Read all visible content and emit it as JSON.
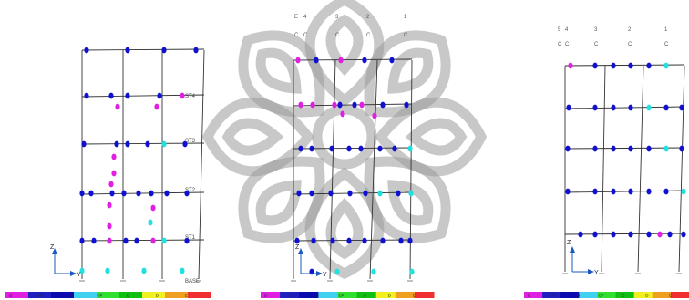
{
  "colors": {
    "blue": "#1010d0",
    "magenta": "#e020e0",
    "cyan": "#20e0e0",
    "frame": "#333333"
  },
  "legend_colors": [
    "#e020e0",
    "#2020c0",
    "#0a0ab0",
    "#40d0f0",
    "#30e030",
    "#10c010",
    "#f0f020",
    "#f0a020",
    "#f03030"
  ],
  "panel1": {
    "story_labels": [
      "ST4",
      "ST3",
      "ST2",
      "ST1"
    ],
    "base_label": "BASE",
    "axis_z": "Z",
    "axis_y": "Y",
    "legend_labels": [
      "B",
      "IO",
      "LS",
      "CP",
      "C",
      "D",
      "E"
    ]
  },
  "panel2": {
    "grid_top": [
      "E",
      "4",
      "3",
      "2",
      "1"
    ],
    "grid_bottom": [
      "C",
      "C",
      "C",
      "C",
      "C"
    ],
    "axis_z": "Z",
    "axis_y": "Y",
    "legend_labels": [
      "B",
      "IO",
      "LS",
      "CP",
      "C",
      "D",
      "E"
    ]
  },
  "panel3": {
    "grid_top": [
      "5",
      "4",
      "3",
      "2",
      "1"
    ],
    "grid_bottom": [
      "C",
      "C",
      "C",
      "C",
      "C"
    ],
    "axis_z": "Z",
    "axis_y": "Y",
    "legend_labels": [
      "B",
      "IO",
      "LS",
      "CP",
      "C",
      "D",
      "E"
    ]
  }
}
